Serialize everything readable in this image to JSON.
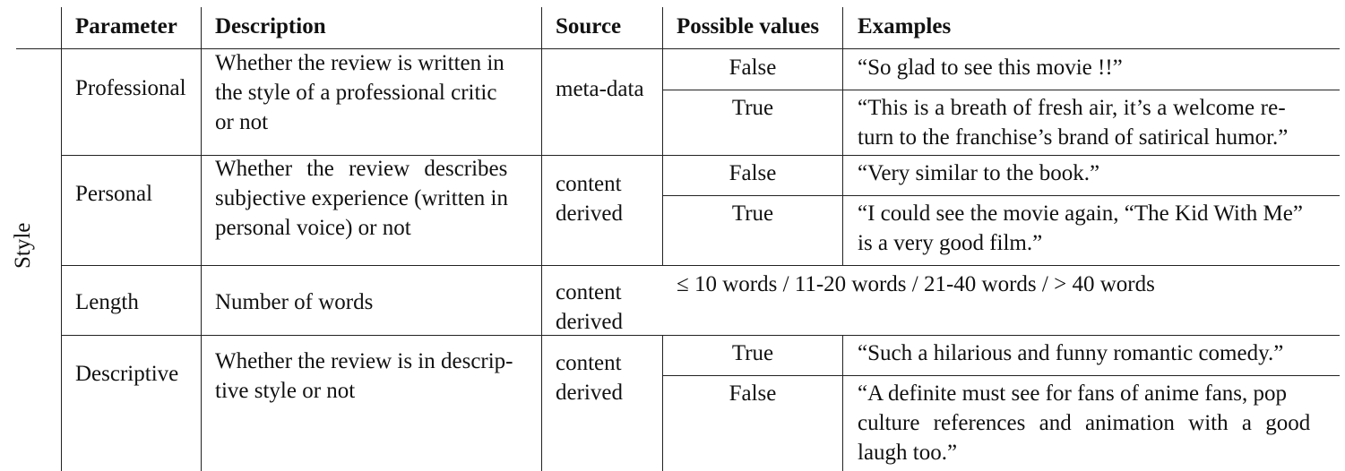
{
  "table": {
    "group_label": "Style",
    "headers": {
      "parameter": "Parameter",
      "description": "Description",
      "source": "Source",
      "possible_values": "Possible values",
      "examples": "Examples"
    },
    "rows": [
      {
        "parameter": "Professional",
        "description_lines": [
          "Whether the review is written in",
          "the style of a professional critic",
          "or not"
        ],
        "source_lines": [
          "meta-data"
        ],
        "values": [
          {
            "value": "False",
            "example_lines": [
              "“So glad to see this movie !!”"
            ]
          },
          {
            "value": "True",
            "example_lines": [
              "“This is a breath of fresh air, it’s a welcome re-",
              "turn to the franchise’s brand of satirical humor.”"
            ]
          }
        ]
      },
      {
        "parameter": "Personal",
        "description_lines": [
          "Whether the review describes",
          "subjective experience (written in",
          "personal voice) or not"
        ],
        "source_lines": [
          "content",
          "derived"
        ],
        "values": [
          {
            "value": "False",
            "example_lines": [
              "“Very similar to the book.”"
            ]
          },
          {
            "value": "True",
            "example_lines": [
              "“I could see the movie again, “The Kid With Me”",
              "is a very good film.”"
            ]
          }
        ]
      },
      {
        "parameter": "Length",
        "description_lines": [
          "Number of words"
        ],
        "source_lines": [
          "content",
          "derived"
        ],
        "span_text": "≤ 10 words / 11-20 words / 21-40 words / > 40 words"
      },
      {
        "parameter": "Descriptive",
        "description_lines": [
          "Whether the review is in descrip-",
          "tive style or not"
        ],
        "source_lines": [
          "content",
          "derived"
        ],
        "values": [
          {
            "value": "True",
            "example_lines": [
              "“Such a hilarious and funny romantic comedy.”"
            ]
          },
          {
            "value": "False",
            "example_lines": [
              "“A definite must see for fans of anime fans, pop",
              "culture references and animation with a good",
              "laugh too.”"
            ]
          }
        ]
      }
    ]
  }
}
